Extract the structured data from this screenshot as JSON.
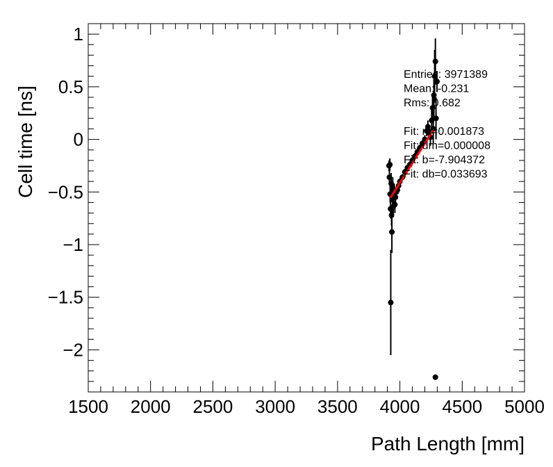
{
  "chart_data": {
    "type": "scatter",
    "title": "",
    "xlabel": "Path Length [mm]",
    "ylabel": "Cell time [ns]",
    "xlim": [
      1500,
      5000
    ],
    "ylim": [
      -2.4,
      1.1
    ],
    "x_ticks": [
      1500,
      2000,
      2500,
      3000,
      3500,
      4000,
      4500,
      5000
    ],
    "y_ticks": [
      1,
      0.5,
      0,
      -0.5,
      -1,
      -1.5,
      -2
    ],
    "x_tick_labels": [
      "1500",
      "2000",
      "2500",
      "3000",
      "3500",
      "4000",
      "4500",
      "5000"
    ],
    "y_tick_labels": [
      "1",
      "0.5",
      "0",
      "−0.5",
      "−1",
      "−1.5",
      "−2"
    ],
    "grid": false,
    "series": [
      {
        "kind": "points_with_errors",
        "color": "#000000",
        "points": [
          {
            "x": 3913,
            "y": -0.25,
            "err": 0.05
          },
          {
            "x": 3916,
            "y": -0.36,
            "err": 0.06
          },
          {
            "x": 3920,
            "y": -0.24,
            "err": 0.06
          },
          {
            "x": 3922,
            "y": -0.52,
            "err": 0.08
          },
          {
            "x": 3925,
            "y": -0.66,
            "err": 0.09
          },
          {
            "x": 3927,
            "y": -1.55,
            "err": 0.5
          },
          {
            "x": 3930,
            "y": -0.42,
            "err": 0.1
          },
          {
            "x": 3933,
            "y": -0.72,
            "err": 0.1
          },
          {
            "x": 3936,
            "y": -0.88,
            "err": 0.2
          },
          {
            "x": 3940,
            "y": -0.57,
            "err": 0.1
          },
          {
            "x": 3943,
            "y": -0.46,
            "err": 0.1
          },
          {
            "x": 3947,
            "y": -0.64,
            "err": 0.1
          },
          {
            "x": 3951,
            "y": -0.56,
            "err": 0.1
          },
          {
            "x": 3955,
            "y": -0.5,
            "err": 0.08
          },
          {
            "x": 3960,
            "y": -0.62,
            "err": 0.08
          },
          {
            "x": 3965,
            "y": -0.55,
            "err": 0.06
          },
          {
            "x": 3972,
            "y": -0.5,
            "err": 0.05
          },
          {
            "x": 3980,
            "y": -0.48,
            "err": 0.04
          },
          {
            "x": 3990,
            "y": -0.44,
            "err": 0.04
          },
          {
            "x": 4000,
            "y": -0.4,
            "err": 0.03
          },
          {
            "x": 4020,
            "y": -0.36,
            "err": 0.03
          },
          {
            "x": 4040,
            "y": -0.31,
            "err": 0.03
          },
          {
            "x": 4060,
            "y": -0.27,
            "err": 0.03
          },
          {
            "x": 4080,
            "y": -0.24,
            "err": 0.03
          },
          {
            "x": 4100,
            "y": -0.2,
            "err": 0.03
          },
          {
            "x": 4120,
            "y": -0.16,
            "err": 0.03
          },
          {
            "x": 4140,
            "y": -0.12,
            "err": 0.03
          },
          {
            "x": 4160,
            "y": -0.08,
            "err": 0.03
          },
          {
            "x": 4180,
            "y": -0.04,
            "err": 0.03
          },
          {
            "x": 4200,
            "y": 0.0,
            "err": 0.04
          },
          {
            "x": 4215,
            "y": 0.08,
            "err": 0.05
          },
          {
            "x": 4225,
            "y": 0.12,
            "err": 0.06
          },
          {
            "x": 4235,
            "y": 0.06,
            "err": 0.06
          },
          {
            "x": 4245,
            "y": 0.02,
            "err": 0.08
          },
          {
            "x": 4255,
            "y": 0.18,
            "err": 0.1
          },
          {
            "x": 4262,
            "y": 0.3,
            "err": 0.12
          },
          {
            "x": 4268,
            "y": 0.1,
            "err": 0.14
          },
          {
            "x": 4273,
            "y": 0.42,
            "err": 0.2
          },
          {
            "x": 4279,
            "y": 0.6,
            "err": 0.25
          },
          {
            "x": 4285,
            "y": 0.74,
            "err": 0.22
          },
          {
            "x": 4290,
            "y": 0.2,
            "err": 0.2
          },
          {
            "x": 4298,
            "y": 0.55,
            "err": 0.1
          },
          {
            "x": 4285,
            "y": -2.26,
            "err": 0.0
          }
        ]
      },
      {
        "kind": "fit_line",
        "color": "#ff0000",
        "x_range": [
          3925,
          4265
        ]
      }
    ],
    "fit": {
      "m": 0.001873,
      "b": -7.904372
    },
    "stats_box": [
      "Entries: 3971389",
      "Mean: -0.231",
      "Rms: 0.682",
      "",
      "Fit: m=0.001873",
      "Fit: dm=0.000008",
      "Fit: b=-7.904372",
      "Fit: db=0.033693"
    ]
  }
}
